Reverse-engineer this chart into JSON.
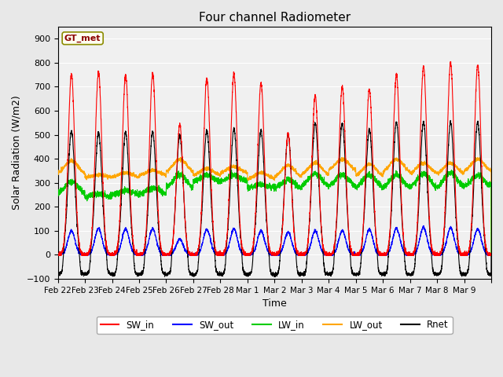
{
  "title": "Four channel Radiometer",
  "xlabel": "Time",
  "ylabel": "Solar Radiation (W/m2)",
  "ylim": [
    -100,
    950
  ],
  "yticks": [
    -100,
    0,
    100,
    200,
    300,
    400,
    500,
    600,
    700,
    800,
    900
  ],
  "annotation_text": "GT_met",
  "annotation_color": "#8B0000",
  "annotation_bg": "#FFFFF0",
  "annotation_border": "#8B8B00",
  "bg_color": "#E8E8E8",
  "plot_bg_color": "#F0F0F0",
  "grid_color": "white",
  "line_colors": {
    "SW_in": "#FF0000",
    "SW_out": "#0000FF",
    "LW_in": "#00CC00",
    "LW_out": "#FFA500",
    "Rnet": "#000000"
  },
  "line_widths": {
    "SW_in": 0.8,
    "SW_out": 0.8,
    "LW_in": 0.8,
    "LW_out": 0.8,
    "Rnet": 0.8
  },
  "xtick_labels": [
    "Feb 22",
    "Feb 23",
    "Feb 24",
    "Feb 25",
    "Feb 26",
    "Feb 27",
    "Feb 28",
    "Mar 1",
    "Mar 2",
    "Mar 3",
    "Mar 4",
    "Mar 5",
    "Mar 6",
    "Mar 7",
    "Mar 8",
    "Mar 9"
  ],
  "n_days": 16,
  "points_per_day": 288,
  "SW_in_peaks": [
    750,
    760,
    750,
    755,
    540,
    735,
    755,
    715,
    505,
    660,
    700,
    690,
    750,
    785,
    800,
    790
  ],
  "SW_out_peaks": [
    100,
    110,
    108,
    108,
    65,
    105,
    108,
    100,
    95,
    100,
    100,
    105,
    110,
    115,
    112,
    108
  ],
  "LW_in_base": [
    248,
    240,
    248,
    248,
    272,
    300,
    302,
    278,
    272,
    278,
    280,
    272,
    272,
    272,
    272,
    275
  ],
  "LW_in_peak": [
    305,
    252,
    268,
    278,
    332,
    332,
    332,
    292,
    312,
    338,
    332,
    332,
    332,
    338,
    342,
    332
  ],
  "LW_out_base": [
    332,
    322,
    322,
    328,
    338,
    328,
    338,
    312,
    318,
    328,
    348,
    322,
    338,
    332,
    332,
    342
  ],
  "LW_out_peak": [
    392,
    332,
    342,
    352,
    398,
    358,
    368,
    342,
    372,
    382,
    398,
    378,
    398,
    382,
    382,
    398
  ],
  "Rnet_peaks": [
    515,
    510,
    510,
    510,
    498,
    515,
    525,
    518,
    500,
    548,
    548,
    522,
    552,
    552,
    552,
    552
  ],
  "Rnet_night": [
    -80,
    -80,
    -82,
    -82,
    -82,
    -82,
    -82,
    -82,
    -82,
    -82,
    -82,
    -82,
    -82,
    -82,
    -82,
    -82
  ]
}
